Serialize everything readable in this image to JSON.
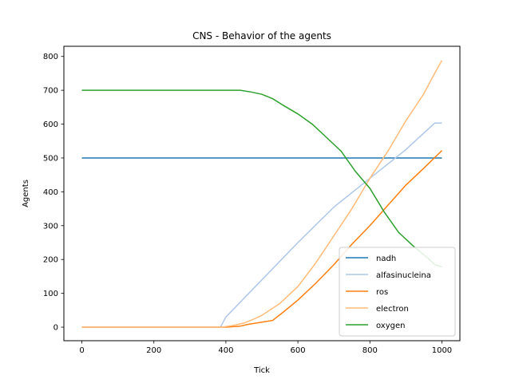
{
  "chart_data": {
    "type": "line",
    "title": "CNS - Behavior of the agents",
    "xlabel": "Tick",
    "ylabel": "Agents",
    "xlim": [
      -50,
      1050
    ],
    "ylim": [
      -40,
      830
    ],
    "xticks": [
      0,
      200,
      400,
      600,
      800,
      1000
    ],
    "yticks": [
      0,
      100,
      200,
      300,
      400,
      500,
      600,
      700,
      800
    ],
    "grid": false,
    "legend_position": "lower-right",
    "series": [
      {
        "name": "nadh",
        "color": "#1f77b4",
        "x": [
          0,
          1000
        ],
        "y": [
          500,
          500
        ]
      },
      {
        "name": "alfasinucleina",
        "color": "#aec7e8",
        "x": [
          0,
          385,
          400,
          500,
          600,
          700,
          800,
          900,
          980,
          1000
        ],
        "y": [
          0,
          0,
          30,
          140,
          250,
          355,
          440,
          525,
          603,
          603
        ]
      },
      {
        "name": "ros",
        "color": "#ff7f0e",
        "x": [
          0,
          400,
          440,
          460,
          500,
          530,
          560,
          600,
          650,
          700,
          750,
          800,
          850,
          900,
          950,
          1000
        ],
        "y": [
          0,
          0,
          3,
          8,
          15,
          20,
          45,
          80,
          130,
          185,
          245,
          300,
          360,
          420,
          470,
          522
        ]
      },
      {
        "name": "electron",
        "color": "#ffbb78",
        "x": [
          0,
          390,
          420,
          450,
          480,
          500,
          550,
          600,
          650,
          700,
          750,
          800,
          850,
          900,
          950,
          980,
          1000
        ],
        "y": [
          0,
          0,
          5,
          12,
          25,
          35,
          70,
          120,
          190,
          270,
          350,
          440,
          520,
          610,
          690,
          750,
          788
        ]
      },
      {
        "name": "oxygen",
        "color": "#2ca02c",
        "x": [
          0,
          440,
          470,
          500,
          530,
          560,
          600,
          640,
          680,
          720,
          760,
          800,
          840,
          880,
          920,
          960,
          980,
          1000
        ],
        "y": [
          700,
          700,
          695,
          688,
          675,
          655,
          630,
          600,
          560,
          520,
          460,
          410,
          340,
          280,
          240,
          205,
          185,
          178
        ]
      }
    ]
  }
}
